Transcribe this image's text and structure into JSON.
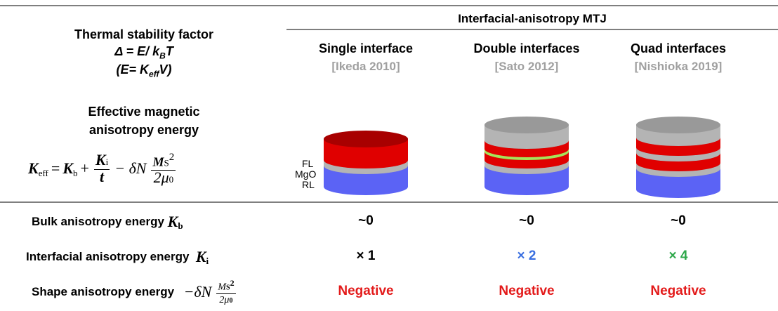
{
  "header": {
    "group_title": "Interfacial-anisotropy MTJ"
  },
  "left_header": {
    "title": "Thermal stability factor",
    "delta": [
      "Δ = E/ k",
      "B",
      "T"
    ],
    "energy": [
      "(E= K",
      "eff",
      "V)"
    ]
  },
  "columns": [
    {
      "title": "Single interface",
      "ref": "[Ikeda 2010]"
    },
    {
      "title": "Double interfaces",
      "ref": "[Sato 2012]"
    },
    {
      "title": "Quad interfaces",
      "ref": "[Nishioka 2019]"
    }
  ],
  "keff": {
    "title": [
      "Effective magnetic",
      "anisotropy energy"
    ],
    "formula": {
      "k": "K",
      "eff": "eff",
      "eq": "=",
      "kb": "K",
      "b": "b",
      "plus": "+",
      "ki": "K",
      "i": "i",
      "t": "t",
      "minus": "− δN",
      "m": "M",
      "s": "S",
      "sq": "2",
      "den": "2μ",
      "zero": "0"
    }
  },
  "layer_labels": [
    "FL",
    "MgO",
    "RL"
  ],
  "rows": [
    {
      "label": "Bulk anisotropy energy",
      "symbol": "K",
      "sub": "b",
      "values": [
        "~0",
        "~0",
        "~0"
      ],
      "colors": [
        "#000000",
        "#000000",
        "#000000"
      ]
    },
    {
      "label": "Interfacial anisotropy energy",
      "symbol": "K",
      "sub": "i",
      "values": [
        "× 1",
        "× 2",
        "× 4"
      ],
      "colors": [
        "#000000",
        "#3a6fe0",
        "#2ea84a"
      ]
    },
    {
      "label": "Shape anisotropy energy",
      "formula": {
        "minus": "−δN",
        "m": "M",
        "s": "S",
        "sq": "2",
        "den": "2μ",
        "zero": "0"
      },
      "values": [
        "Negative",
        "Negative",
        "Negative"
      ],
      "colors": [
        "#e31b1b",
        "#e31b1b",
        "#e31b1b"
      ]
    }
  ]
}
